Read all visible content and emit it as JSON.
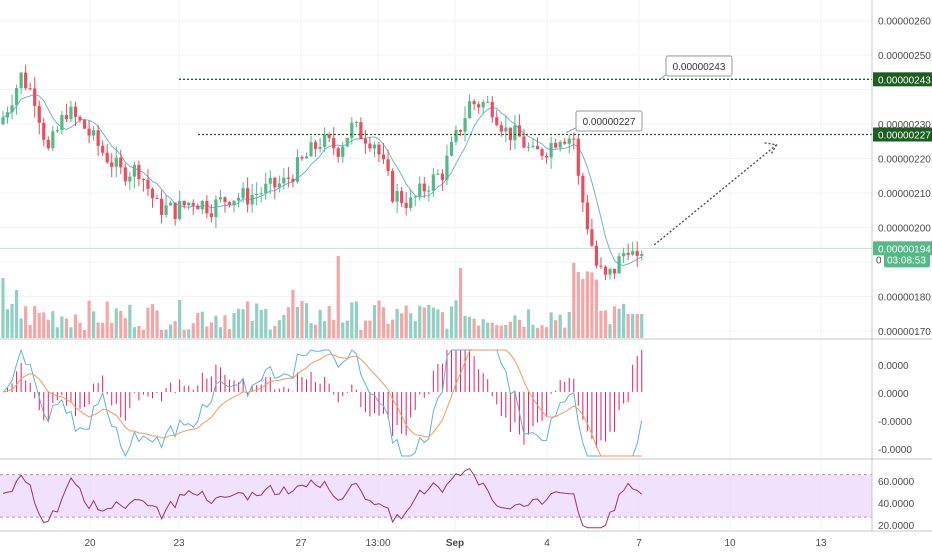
{
  "chart_data": [
    {
      "type": "candlestick",
      "title": "",
      "ylim": [
        1.68e-06,
        2.66e-06
      ],
      "x_ticks": [
        "20",
        "23",
        "27",
        "13:00",
        "Sep",
        "4",
        "7",
        "10",
        "13"
      ],
      "y_ticks": [
        "0.00000260",
        "0.00000250",
        "0.00000230",
        "0.00000220",
        "0.00000210",
        "0.00000200",
        "0.00000180",
        "0.00000170"
      ],
      "price_badges": {
        "resistance_high": "0.00000243",
        "resistance_low": "0.00000227",
        "last_price": "0.00000194",
        "countdown": "03:08:53",
        "countdown_prefix": "0"
      },
      "annotations": {
        "callout_high": "0.00000243",
        "callout_low": "0.00000227"
      },
      "horizontal_levels": [
        2.43e-06,
        2.27e-06
      ],
      "projection_arrow": {
        "from": {
          "index": 142,
          "value": 1.95e-06
        },
        "to": {
          "index": 169,
          "value": 2.24e-06
        }
      },
      "colors": {
        "up": "#53b987",
        "down": "#eb4d5c",
        "volume_up": "#8fcfc4",
        "volume_down": "#f4a6a6",
        "ma": "#6fb7c9",
        "level": "#1b5e20"
      },
      "candle_count": 142,
      "moving_average": "teal line on price",
      "volume": "bars at bottom of price pane"
    },
    {
      "type": "line",
      "name": "MACD pane",
      "y_ticks": [
        "0.0000",
        "0.0000",
        "-0.0000",
        "-0.0000"
      ],
      "series_colors": {
        "macd": "#5ab4d6",
        "signal": "#f39a5c",
        "histogram": "#e91e63"
      }
    },
    {
      "type": "line",
      "name": "RSI pane",
      "y_ticks": [
        "60.0000",
        "40.0000",
        "20.0000"
      ],
      "band": [
        30,
        70
      ],
      "ylim": [
        17,
        80
      ],
      "series_colors": {
        "rsi": "#a0306f",
        "band": "#e9d5fb"
      }
    }
  ]
}
